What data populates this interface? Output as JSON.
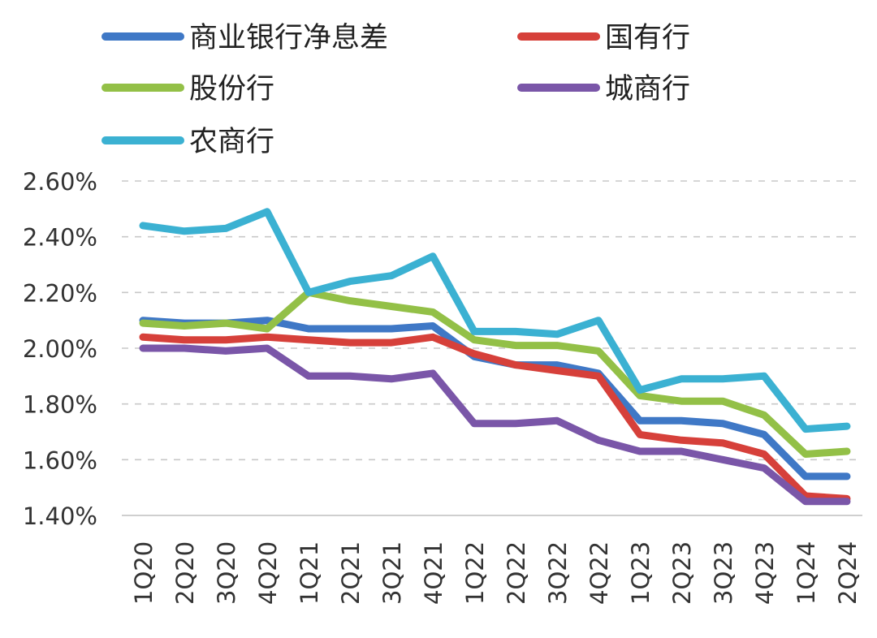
{
  "chart_data": {
    "type": "line",
    "title": "",
    "xlabel": "",
    "ylabel": "",
    "ylim": [
      1.4,
      2.6
    ],
    "yticks": [
      "1.40%",
      "1.60%",
      "1.80%",
      "2.00%",
      "2.20%",
      "2.40%",
      "2.60%"
    ],
    "ytick_values": [
      1.4,
      1.6,
      1.8,
      2.0,
      2.2,
      2.4,
      2.6
    ],
    "grid": "horizontal dashed",
    "legend_placement": "top",
    "categories": [
      "1Q20",
      "2Q20",
      "3Q20",
      "4Q20",
      "1Q21",
      "2Q21",
      "3Q21",
      "4Q21",
      "1Q22",
      "2Q22",
      "3Q22",
      "4Q22",
      "1Q23",
      "2Q23",
      "3Q23",
      "4Q23",
      "1Q24",
      "2Q24"
    ],
    "series": [
      {
        "name": "商业银行净息差",
        "color": "#3f78c6",
        "values": [
          2.1,
          2.09,
          2.09,
          2.1,
          2.07,
          2.07,
          2.07,
          2.08,
          1.97,
          1.94,
          1.94,
          1.91,
          1.74,
          1.74,
          1.73,
          1.69,
          1.54,
          1.54
        ]
      },
      {
        "name": "国有行",
        "color": "#d6403a",
        "values": [
          2.04,
          2.03,
          2.03,
          2.04,
          2.03,
          2.02,
          2.02,
          2.04,
          1.98,
          1.94,
          1.92,
          1.9,
          1.69,
          1.67,
          1.66,
          1.62,
          1.47,
          1.46
        ]
      },
      {
        "name": "股份行",
        "color": "#93c047",
        "values": [
          2.09,
          2.08,
          2.09,
          2.07,
          2.2,
          2.17,
          2.15,
          2.13,
          2.03,
          2.01,
          2.01,
          1.99,
          1.83,
          1.81,
          1.81,
          1.76,
          1.62,
          1.63
        ]
      },
      {
        "name": "城商行",
        "color": "#7a56a8",
        "values": [
          2.0,
          2.0,
          1.99,
          2.0,
          1.9,
          1.9,
          1.89,
          1.91,
          1.73,
          1.73,
          1.74,
          1.67,
          1.63,
          1.63,
          1.6,
          1.57,
          1.45,
          1.45
        ]
      },
      {
        "name": "农商行",
        "color": "#3bb1d2",
        "values": [
          2.44,
          2.42,
          2.43,
          2.49,
          2.2,
          2.24,
          2.26,
          2.33,
          2.06,
          2.06,
          2.05,
          2.1,
          1.85,
          1.89,
          1.89,
          1.9,
          1.71,
          1.72
        ]
      }
    ]
  }
}
